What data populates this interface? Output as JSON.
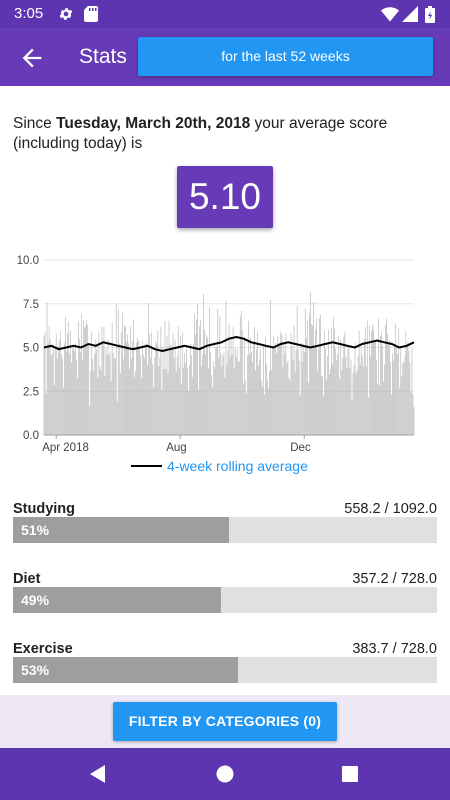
{
  "status_bar": {
    "time": "3:05",
    "icons": [
      "gear-icon",
      "sd-card-icon",
      "wifi-icon",
      "signal-icon",
      "battery-icon"
    ]
  },
  "app_bar": {
    "title": "Stats",
    "range_button_label": "for the last 52 weeks",
    "back_icon": "arrow-left-icon"
  },
  "summary": {
    "prefix": "Since ",
    "date": "Tuesday, March 20th, 2018",
    "suffix": " your average score (including today) is",
    "score": "5.10"
  },
  "chart_data": {
    "type": "bar",
    "series": [
      {
        "name": "",
        "kind": "bar",
        "description": "daily score",
        "color": "#b0b0b0"
      },
      {
        "name": "4-week rolling average",
        "kind": "line",
        "color": "#000000"
      }
    ],
    "yticks": [
      "0.0",
      "2.5",
      "5.0",
      "7.5",
      "10.0"
    ],
    "ylim": [
      0,
      10
    ],
    "xticks": [
      "Apr 2018",
      "Aug",
      "Dec"
    ],
    "x_start": "2018-03-20",
    "num_days": 365,
    "seed": 7,
    "rolling_average": [
      5.0,
      5.1,
      4.9,
      5.0,
      5.1,
      5.0,
      5.2,
      5.1,
      5.3,
      5.2,
      5.1,
      5.0,
      4.9,
      5.0,
      5.1,
      4.9,
      4.8,
      4.9,
      5.0,
      5.1,
      5.0,
      4.9,
      5.1,
      5.2,
      5.3,
      5.5,
      5.6,
      5.5,
      5.3,
      5.2,
      5.1,
      5.0,
      5.2,
      5.3,
      5.2,
      5.1,
      5.0,
      5.1,
      5.2,
      5.3,
      5.2,
      5.1,
      5.0,
      5.2,
      5.3,
      5.4,
      5.3,
      5.2,
      5.0,
      5.1,
      5.3
    ],
    "legend": "4-week rolling average",
    "legend_position": "bottom",
    "colors": {
      "bars": "#b0b0b0",
      "line": "#000000",
      "legend_text": "#2196f3",
      "axis": "#9e9e9e"
    }
  },
  "categories": [
    {
      "name": "Studying",
      "value_text": "558.2 / 1092.0",
      "percent_text": "51%",
      "fraction": 0.51
    },
    {
      "name": "Diet",
      "value_text": "357.2 / 728.0",
      "percent_text": "49%",
      "fraction": 0.49
    },
    {
      "name": "Exercise",
      "value_text": "383.7 / 728.0",
      "percent_text": "53%",
      "fraction": 0.53
    }
  ],
  "footer": {
    "filter_button_label": "FILTER BY CATEGORIES (0)"
  },
  "nav_bar": {
    "icons": [
      "back-triangle-icon",
      "home-circle-icon",
      "recents-square-icon"
    ]
  },
  "colors": {
    "primary": "#673ab7",
    "primary_dark": "#5e35b1",
    "accent": "#2196f3",
    "footer_bg": "#ede7f6"
  }
}
